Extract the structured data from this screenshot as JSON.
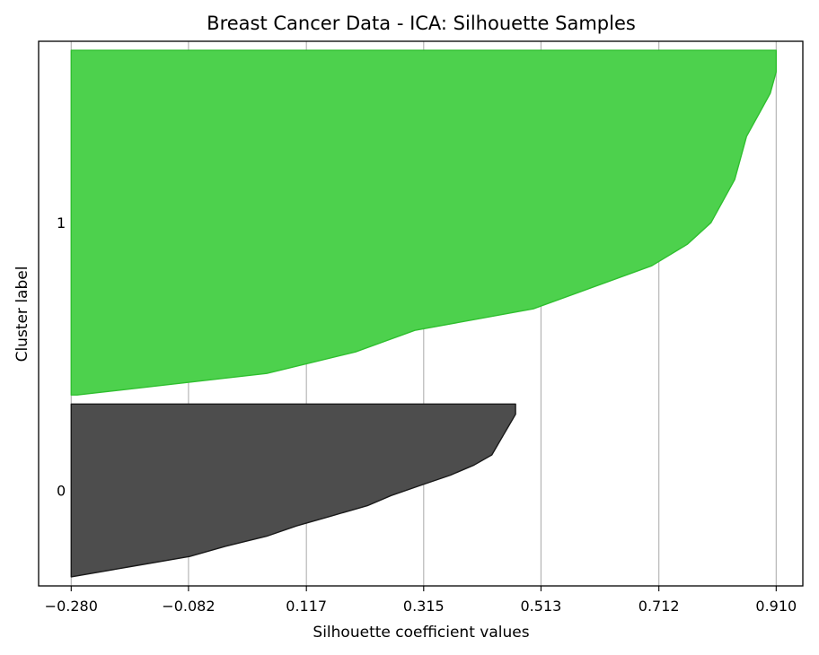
{
  "chart_data": {
    "type": "silhouette",
    "title": "Breast Cancer Data - ICA: Silhouette Samples",
    "xlabel": "Silhouette coefficient values",
    "ylabel": "Cluster label",
    "xlim": [
      -0.335,
      0.955
    ],
    "x_ticks": [
      -0.28,
      -0.082,
      0.117,
      0.315,
      0.513,
      0.712,
      0.91
    ],
    "x_tick_labels": [
      "−0.280",
      "−0.082",
      "0.117",
      "0.315",
      "0.513",
      "0.712",
      "0.910"
    ],
    "grid": "vertical",
    "baseline": -0.28,
    "clusters": [
      {
        "label": "0",
        "color": "#4d4d4d",
        "edge_color": "#1a1a1a",
        "sample_count": 190,
        "sorted_values_low_to_high": [
          -0.28,
          -0.18,
          -0.08,
          -0.02,
          0.05,
          0.1,
          0.16,
          0.22,
          0.26,
          0.31,
          0.36,
          0.4,
          0.43,
          0.44,
          0.45,
          0.46,
          0.47,
          0.47
        ]
      },
      {
        "label": "1",
        "color": "#4dd14d",
        "edge_color": "#2fbf2f",
        "sample_count": 379,
        "sorted_values_low_to_high": [
          -0.27,
          0.05,
          0.2,
          0.3,
          0.5,
          0.6,
          0.7,
          0.76,
          0.8,
          0.82,
          0.84,
          0.85,
          0.86,
          0.88,
          0.9,
          0.91,
          0.91
        ]
      }
    ]
  }
}
